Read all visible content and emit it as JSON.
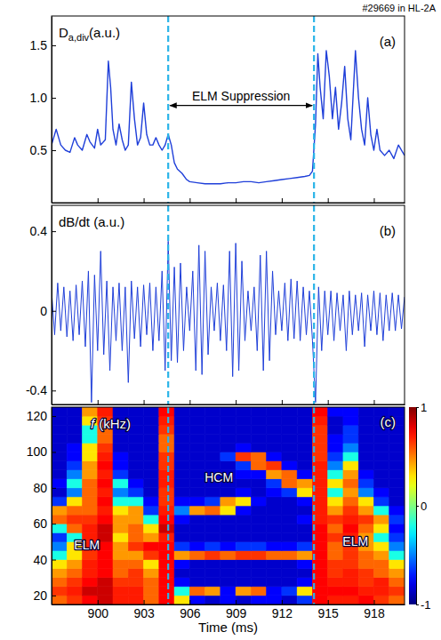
{
  "chart_data": [
    {
      "type": "line",
      "title": "#29669 in HL-2A",
      "ylabel": {
        "main": "D",
        "sub": "a,div",
        "unit": "(a.u.)"
      },
      "panel_label": "(a)",
      "xlim": [
        897,
        920
      ],
      "xticks": [
        900,
        903,
        906,
        909,
        912,
        915,
        918
      ],
      "ylim": [
        0,
        1.78
      ],
      "yticks": [
        0.5,
        {
          "value": 1,
          "label": "1.0"
        },
        1.5
      ],
      "tick_labels": "y",
      "vlines": [
        904.6,
        914.1
      ],
      "annotations": [
        {
          "text": "ELM Suppression",
          "x": 909.35,
          "y": 1.02,
          "x_from": 904.6,
          "x_to": 914.1
        }
      ],
      "series": [
        {
          "color": "#1f3fd9",
          "x": [
            897.0,
            897.3,
            897.6,
            897.9,
            898.2,
            898.5,
            898.7,
            899.0,
            899.3,
            899.5,
            899.8,
            900.0,
            900.2,
            900.5,
            900.7,
            900.85,
            901.0,
            901.2,
            901.4,
            901.6,
            901.8,
            902.0,
            902.2,
            902.4,
            902.6,
            902.8,
            903.0,
            903.2,
            903.4,
            903.6,
            903.8,
            904.0,
            904.2,
            904.4,
            904.6,
            904.8,
            905.0,
            905.2,
            905.5,
            905.8,
            906.0,
            906.5,
            907.0,
            907.5,
            908.0,
            908.5,
            909.0,
            909.5,
            910.0,
            910.5,
            911.0,
            911.5,
            912.0,
            912.5,
            913.0,
            913.5,
            913.8,
            914.0,
            914.2,
            914.35,
            914.5,
            914.7,
            914.9,
            915.1,
            915.3,
            915.5,
            915.7,
            915.9,
            916.1,
            916.3,
            916.5,
            916.8,
            917.0,
            917.2,
            917.4,
            917.6,
            917.8,
            918.0,
            918.2,
            918.4,
            918.7,
            919.0,
            919.3,
            919.6,
            920.0
          ],
          "values": [
            0.55,
            0.7,
            0.55,
            0.5,
            0.48,
            0.62,
            0.55,
            0.5,
            0.65,
            0.58,
            0.52,
            0.7,
            0.55,
            0.6,
            1.35,
            1.1,
            0.7,
            0.55,
            0.75,
            0.6,
            0.5,
            0.55,
            1.15,
            0.8,
            0.55,
            0.62,
            0.95,
            0.65,
            0.55,
            0.55,
            0.62,
            0.55,
            0.5,
            0.55,
            0.65,
            0.55,
            0.38,
            0.32,
            0.28,
            0.22,
            0.2,
            0.19,
            0.18,
            0.18,
            0.18,
            0.19,
            0.19,
            0.2,
            0.2,
            0.19,
            0.2,
            0.21,
            0.22,
            0.23,
            0.24,
            0.25,
            0.26,
            0.3,
            0.75,
            1.42,
            1.1,
            0.8,
            1.45,
            1.2,
            0.8,
            1.1,
            0.7,
            0.95,
            1.3,
            0.8,
            0.6,
            1.45,
            1.0,
            0.7,
            0.55,
            1.0,
            0.65,
            0.5,
            0.7,
            0.5,
            0.45,
            0.5,
            0.42,
            0.55,
            0.45
          ]
        }
      ]
    },
    {
      "type": "line",
      "ylabel": "dB/dt (a.u.)",
      "panel_label": "(b)",
      "xlim": [
        897,
        920
      ],
      "xticks": [
        900,
        903,
        906,
        909,
        912,
        915,
        918
      ],
      "ylim": [
        -0.47,
        0.53
      ],
      "yticks": [
        -0.4,
        0,
        0.4
      ],
      "tick_labels": "y",
      "vlines": [
        904.6,
        914.1
      ],
      "series": [
        {
          "color": "#1f3fd9",
          "x": [
            897.0,
            897.2,
            897.4,
            897.6,
            897.8,
            898.0,
            898.2,
            898.4,
            898.6,
            898.8,
            899.0,
            899.2,
            899.4,
            899.6,
            899.8,
            900.0,
            900.2,
            900.4,
            900.6,
            900.8,
            901.0,
            901.2,
            901.4,
            901.6,
            901.8,
            902.0,
            902.2,
            902.4,
            902.6,
            902.8,
            903.0,
            903.2,
            903.4,
            903.6,
            903.8,
            904.0,
            904.2,
            904.4,
            904.6,
            904.8,
            905.0,
            905.2,
            905.4,
            905.6,
            905.8,
            906.0,
            906.2,
            906.4,
            906.6,
            906.8,
            907.0,
            907.2,
            907.4,
            907.6,
            907.8,
            908.0,
            908.2,
            908.4,
            908.6,
            908.8,
            909.0,
            909.2,
            909.4,
            909.6,
            909.8,
            910.0,
            910.2,
            910.4,
            910.6,
            910.8,
            911.0,
            911.2,
            911.4,
            911.6,
            911.8,
            912.0,
            912.2,
            912.4,
            912.6,
            912.8,
            913.0,
            913.2,
            913.4,
            913.6,
            913.8,
            914.0,
            914.2,
            914.4,
            914.6,
            914.8,
            915.0,
            915.2,
            915.4,
            915.6,
            915.8,
            916.0,
            916.2,
            916.4,
            916.6,
            916.8,
            917.0,
            917.2,
            917.4,
            917.6,
            917.8,
            918.0,
            918.2,
            918.4,
            918.6,
            918.8,
            919.0,
            919.2,
            919.4,
            919.6,
            919.8,
            920.0
          ],
          "values": [
            0.1,
            -0.12,
            0.14,
            -0.1,
            0.12,
            -0.13,
            0.1,
            -0.15,
            0.13,
            -0.12,
            0.15,
            -0.18,
            0.2,
            -0.46,
            0.18,
            -0.2,
            0.3,
            -0.22,
            0.15,
            -0.3,
            0.12,
            -0.15,
            0.14,
            -0.2,
            0.12,
            -0.36,
            0.15,
            -0.14,
            0.12,
            -0.18,
            0.13,
            -0.12,
            0.14,
            -0.2,
            0.12,
            -0.15,
            0.2,
            -0.3,
            0.35,
            -0.25,
            0.22,
            -0.26,
            0.24,
            -0.2,
            0.12,
            -0.1,
            0.2,
            -0.3,
            0.33,
            -0.32,
            0.3,
            -0.22,
            0.12,
            -0.1,
            0.14,
            -0.15,
            0.13,
            -0.2,
            0.3,
            -0.33,
            0.34,
            -0.3,
            0.25,
            -0.15,
            0.1,
            -0.1,
            0.12,
            -0.2,
            0.28,
            -0.3,
            0.3,
            -0.25,
            0.2,
            -0.12,
            0.1,
            -0.1,
            0.14,
            -0.15,
            0.16,
            -0.14,
            0.15,
            -0.15,
            0.12,
            -0.12,
            0.1,
            -0.15,
            -0.46,
            0.12,
            -0.2,
            0.1,
            -0.12,
            0.1,
            -0.15,
            0.09,
            -0.1,
            0.08,
            -0.2,
            0.1,
            -0.12,
            0.08,
            -0.1,
            0.09,
            -0.18,
            0.08,
            -0.1,
            0.1,
            -0.12,
            0.09,
            -0.15,
            0.08,
            -0.1,
            0.09,
            -0.1,
            0.08,
            -0.09,
            0.07
          ]
        }
      ]
    },
    {
      "type": "heatmap",
      "xlabel": "Time (ms)",
      "ylabel": {
        "symbol": "f",
        "unit": "(kHz)"
      },
      "panel_label": "(c)",
      "xlim": [
        897,
        920
      ],
      "xticks": [
        900,
        903,
        906,
        909,
        912,
        915,
        918
      ],
      "ylim": [
        15,
        125
      ],
      "yticks": [
        20,
        40,
        60,
        80,
        100,
        120
      ],
      "vlines": [
        904.6,
        914.1
      ],
      "annotations": [
        {
          "text": "ELM",
          "x": 899.3,
          "y": 48
        },
        {
          "text": "HCM",
          "x": 907.9,
          "y": 86
        },
        {
          "text": "ELM",
          "x": 916.8,
          "y": 50
        }
      ],
      "zlim": [
        -1,
        1
      ],
      "zticks": [
        -1,
        0,
        1
      ],
      "x_edges": [
        897,
        898,
        899,
        900,
        901,
        902,
        903,
        904,
        905,
        906,
        907,
        908,
        909,
        910,
        911,
        912,
        913,
        914,
        915,
        916,
        917,
        918,
        919,
        920
      ],
      "y_edges": [
        15,
        20,
        25,
        30,
        35,
        40,
        45,
        50,
        55,
        60,
        65,
        70,
        75,
        80,
        85,
        90,
        95,
        100,
        105,
        110,
        115,
        120,
        125
      ],
      "z": [
        [
          0.55,
          0.65,
          0.75,
          0.85,
          0.7,
          0.7,
          0.55,
          0.75,
          0.3,
          -0.75,
          -0.85,
          -0.75,
          -0.85,
          -0.75,
          -0.75,
          -0.85,
          -0.65,
          0.75,
          0.7,
          0.7,
          0.75,
          0.65,
          0.55
        ],
        [
          0.65,
          0.7,
          0.85,
          0.85,
          0.7,
          0.7,
          0.55,
          0.75,
          -0.2,
          0.55,
          0.45,
          -0.75,
          0.45,
          0.55,
          -0.75,
          -0.65,
          0.3,
          0.75,
          0.75,
          0.75,
          0.7,
          0.7,
          0.65
        ],
        [
          0.55,
          0.65,
          0.75,
          0.85,
          0.65,
          0.65,
          0.55,
          0.75,
          -0.75,
          -0.85,
          -0.85,
          -0.85,
          -0.85,
          -0.85,
          -0.85,
          -0.85,
          -0.75,
          0.75,
          0.7,
          0.7,
          0.65,
          0.7,
          0.55
        ],
        [
          0.45,
          0.55,
          0.7,
          0.75,
          0.55,
          0.65,
          0.45,
          0.75,
          -0.85,
          -0.85,
          -0.85,
          -0.85,
          -0.85,
          -0.85,
          -0.85,
          -0.85,
          -0.85,
          0.75,
          0.65,
          0.7,
          0.65,
          0.55,
          0.45
        ],
        [
          0.3,
          0.45,
          0.7,
          0.75,
          0.55,
          0.55,
          0.3,
          0.75,
          -0.75,
          -0.85,
          -0.85,
          -0.85,
          -0.85,
          -0.85,
          -0.85,
          -0.85,
          -0.75,
          0.75,
          0.65,
          0.65,
          0.55,
          0.55,
          0.3
        ],
        [
          -0.2,
          0.3,
          0.65,
          0.75,
          0.45,
          0.45,
          0.65,
          0.75,
          0.45,
          0.55,
          0.65,
          0.55,
          0.65,
          0.65,
          0.55,
          0.55,
          0.45,
          0.75,
          0.55,
          0.65,
          0.55,
          0.45,
          -0.2
        ],
        [
          -0.5,
          0.3,
          0.7,
          0.75,
          0.45,
          0.65,
          0.75,
          0.75,
          -0.65,
          -0.75,
          -0.65,
          -0.75,
          -0.65,
          -0.65,
          -0.75,
          -0.75,
          -0.65,
          0.75,
          0.55,
          0.65,
          0.45,
          0.3,
          -0.5
        ],
        [
          -0.65,
          -0.2,
          0.7,
          0.85,
          0.3,
          0.55,
          0.45,
          0.7,
          -0.85,
          -0.85,
          -0.85,
          -0.85,
          -0.85,
          -0.85,
          -0.85,
          -0.85,
          -0.85,
          0.75,
          0.65,
          0.7,
          0.45,
          -0.2,
          -0.65
        ],
        [
          -0.2,
          0.55,
          0.7,
          0.85,
          0.45,
          0.55,
          0.3,
          0.85,
          -0.85,
          -0.85,
          -0.85,
          -0.85,
          -0.85,
          -0.85,
          -0.85,
          -0.85,
          -0.85,
          0.75,
          0.55,
          0.75,
          0.55,
          0.3,
          -0.75
        ],
        [
          0.55,
          0.65,
          0.65,
          0.75,
          0.45,
          0.45,
          -0.2,
          0.75,
          -0.75,
          -0.85,
          -0.85,
          -0.85,
          -0.85,
          -0.85,
          -0.85,
          -0.85,
          -0.75,
          0.7,
          0.65,
          0.7,
          0.65,
          0.45,
          -0.65
        ],
        [
          0.45,
          0.55,
          0.55,
          0.7,
          0.3,
          0.45,
          -0.65,
          0.7,
          -0.5,
          0.45,
          0.55,
          0.3,
          -0.75,
          -0.85,
          -0.85,
          -0.85,
          -0.85,
          0.7,
          0.45,
          0.65,
          0.45,
          -0.2,
          -0.75
        ],
        [
          -0.65,
          0.3,
          0.55,
          0.75,
          -0.2,
          -0.2,
          -0.75,
          0.65,
          -0.75,
          -0.75,
          -0.65,
          0.45,
          0.3,
          -0.75,
          -0.85,
          -0.85,
          -0.75,
          0.7,
          0.3,
          0.55,
          0.3,
          -0.65,
          -0.85
        ],
        [
          -0.85,
          -0.5,
          0.55,
          0.7,
          -0.5,
          -0.65,
          -0.85,
          0.65,
          -0.85,
          -0.85,
          -0.85,
          -0.85,
          -0.75,
          -0.85,
          -0.75,
          -0.65,
          0.3,
          0.7,
          -0.2,
          0.45,
          -0.5,
          -0.75,
          -0.85
        ],
        [
          -0.75,
          -0.2,
          0.55,
          0.75,
          -0.2,
          -0.75,
          -0.85,
          0.7,
          -0.85,
          -0.85,
          -0.85,
          -0.85,
          -0.85,
          -0.85,
          -0.65,
          0.55,
          0.45,
          0.7,
          0.3,
          0.55,
          -0.65,
          -0.85,
          -0.85
        ],
        [
          -0.85,
          -0.5,
          0.45,
          0.7,
          -0.65,
          -0.85,
          -0.85,
          0.7,
          -0.85,
          -0.85,
          -0.85,
          -0.85,
          -0.75,
          -0.75,
          0.45,
          0.55,
          -0.75,
          0.7,
          -0.2,
          0.45,
          -0.75,
          -0.85,
          -0.85
        ],
        [
          -0.85,
          -0.65,
          0.45,
          0.75,
          -0.75,
          -0.85,
          -0.85,
          0.65,
          -0.85,
          -0.85,
          -0.85,
          -0.85,
          -0.65,
          0.55,
          0.65,
          -0.75,
          -0.85,
          0.7,
          -0.5,
          0.3,
          -0.85,
          -0.85,
          -0.85
        ],
        [
          -0.85,
          -0.75,
          0.3,
          0.7,
          -0.75,
          -0.85,
          -0.85,
          0.65,
          -0.85,
          -0.85,
          -0.85,
          -0.65,
          0.65,
          0.55,
          -0.75,
          -0.85,
          -0.85,
          0.65,
          -0.65,
          -0.2,
          -0.85,
          -0.85,
          -0.85
        ],
        [
          -0.85,
          -0.75,
          0.3,
          0.65,
          -0.85,
          -0.85,
          -0.85,
          0.55,
          -0.85,
          -0.85,
          -0.85,
          -0.85,
          -0.75,
          -0.85,
          -0.85,
          -0.85,
          -0.85,
          0.65,
          -0.75,
          -0.5,
          -0.85,
          -0.85,
          -0.85
        ],
        [
          -0.85,
          -0.85,
          -0.2,
          0.55,
          -0.85,
          -0.85,
          -0.85,
          0.55,
          -0.85,
          -0.85,
          -0.85,
          -0.85,
          -0.85,
          -0.85,
          -0.85,
          -0.85,
          -0.85,
          0.65,
          -0.75,
          -0.65,
          -0.85,
          -0.85,
          -0.85
        ],
        [
          -0.85,
          -0.85,
          -0.2,
          0.55,
          -0.85,
          -0.85,
          -0.85,
          0.65,
          -0.85,
          -0.85,
          -0.85,
          -0.85,
          -0.85,
          -0.85,
          -0.85,
          -0.85,
          -0.85,
          0.65,
          -0.85,
          -0.65,
          -0.85,
          -0.85,
          -0.85
        ],
        [
          -0.85,
          -0.85,
          0.3,
          0.65,
          -0.85,
          -0.85,
          -0.85,
          0.7,
          -0.85,
          -0.85,
          -0.85,
          -0.85,
          -0.85,
          -0.85,
          -0.85,
          -0.85,
          -0.85,
          0.7,
          -0.85,
          -0.75,
          -0.85,
          -0.85,
          -0.85
        ],
        [
          -0.85,
          -0.85,
          0.45,
          0.7,
          -0.85,
          -0.85,
          -0.85,
          0.75,
          -0.85,
          -0.85,
          -0.85,
          -0.85,
          -0.85,
          -0.85,
          -0.85,
          -0.85,
          -0.85,
          0.75,
          -0.75,
          -0.75,
          -0.85,
          -0.85,
          -0.85
        ]
      ]
    }
  ]
}
